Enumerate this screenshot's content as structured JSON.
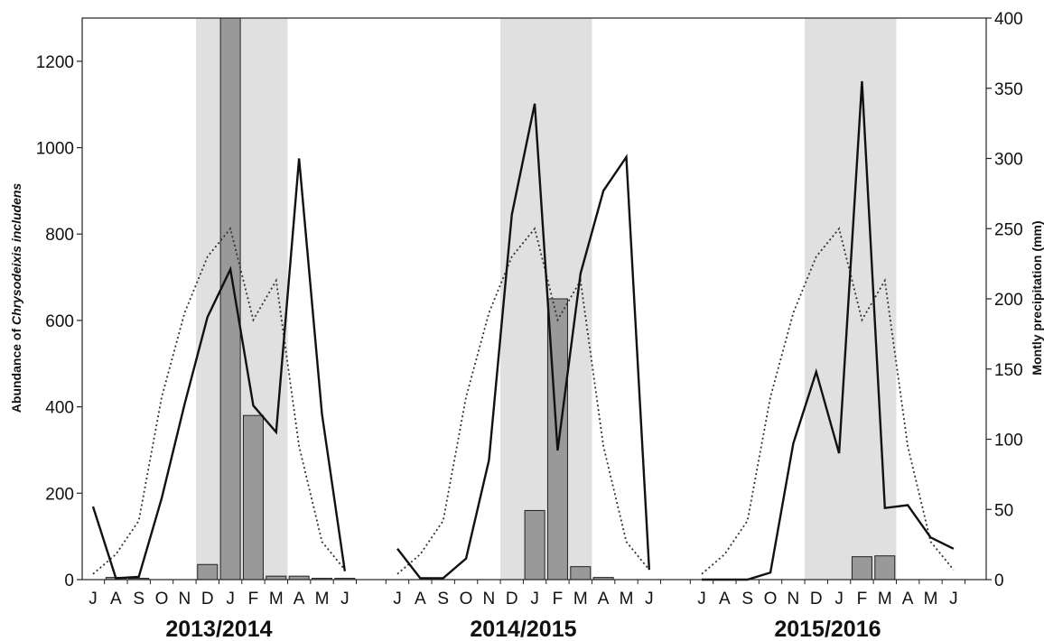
{
  "chart_data": {
    "type": "bar",
    "ylabel_left": {
      "prefix": "Abundance of ",
      "species": "Chrysodeixis includens"
    },
    "ylabel_right": "Montly precipitation (mm)",
    "ylim_left": [
      0,
      1300
    ],
    "yticks_left": [
      0,
      200,
      400,
      600,
      800,
      1000,
      1200
    ],
    "ylim_right": [
      0,
      400
    ],
    "yticks_right": [
      0,
      50,
      100,
      150,
      200,
      250,
      300,
      350,
      400
    ],
    "months": [
      "J",
      "A",
      "S",
      "O",
      "N",
      "D",
      "J",
      "F",
      "M",
      "A",
      "M",
      "J"
    ],
    "seasons": [
      {
        "label": "2013/2014",
        "shaded_months": [
          "D",
          "J",
          "F",
          "M"
        ],
        "abundance": [
          0,
          5,
          3,
          0,
          0,
          35,
          1300,
          380,
          8,
          8,
          3,
          3
        ],
        "precipitation": [
          52,
          1,
          2,
          58,
          125,
          187,
          221,
          124,
          105,
          300,
          118,
          6
        ],
        "historical_precipitation": [
          4,
          18,
          42,
          130,
          190,
          230,
          250,
          185,
          213,
          95,
          27,
          7
        ]
      },
      {
        "label": "2014/2015",
        "shaded_months": [
          "D",
          "J",
          "F",
          "M"
        ],
        "abundance": [
          0,
          0,
          0,
          0,
          0,
          0,
          160,
          650,
          30,
          5,
          0,
          0
        ],
        "precipitation": [
          22,
          1,
          1,
          15,
          85,
          260,
          339,
          92,
          218,
          277,
          301,
          7
        ],
        "historical_precipitation": [
          4,
          18,
          42,
          130,
          190,
          230,
          250,
          185,
          213,
          95,
          27,
          7
        ]
      },
      {
        "label": "2015/2016",
        "shaded_months": [
          "D",
          "J",
          "F",
          "M"
        ],
        "abundance": [
          0,
          0,
          0,
          0,
          0,
          0,
          0,
          53,
          55,
          0,
          0,
          0
        ],
        "precipitation": [
          0,
          0,
          0,
          5,
          97,
          148,
          90,
          355,
          51,
          53,
          30,
          22
        ],
        "historical_precipitation": [
          4,
          18,
          42,
          130,
          190,
          230,
          250,
          185,
          213,
          95,
          27,
          7
        ]
      }
    ],
    "colors": {
      "bar": "#999999",
      "shade": "#e0e0e0",
      "line": "#111111",
      "dotted": "#333333"
    },
    "grid": false
  }
}
